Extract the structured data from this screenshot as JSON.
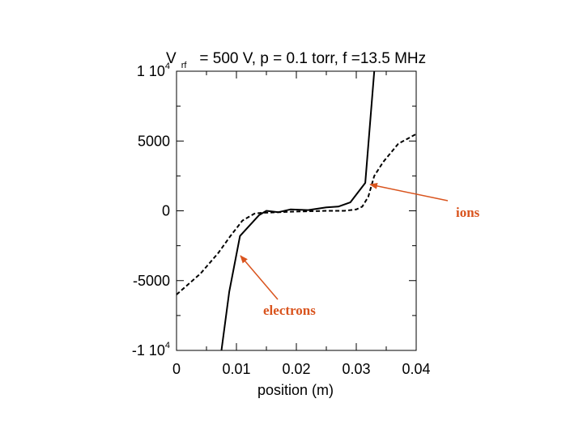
{
  "chart_data": {
    "type": "line",
    "title": {
      "v": "V",
      "rf": "rf",
      "rest": "= 500 V, p = 0.1 torr, f =13.5 MHz"
    },
    "xlabel": "position (m)",
    "ylabel": "",
    "xlim": [
      0,
      0.04
    ],
    "ylim": [
      -10000,
      10000
    ],
    "x_ticks": [
      {
        "value": 0,
        "label": "0"
      },
      {
        "value": 0.01,
        "label": "0.01"
      },
      {
        "value": 0.02,
        "label": "0.02"
      },
      {
        "value": 0.03,
        "label": "0.03"
      },
      {
        "value": 0.04,
        "label": "0.04"
      }
    ],
    "y_ticks": [
      {
        "value": 10000,
        "base": "1 10",
        "exp": "4"
      },
      {
        "value": 5000,
        "base": "5000",
        "exp": ""
      },
      {
        "value": 0,
        "base": "0",
        "exp": ""
      },
      {
        "value": -5000,
        "base": "-5000",
        "exp": ""
      },
      {
        "value": -10000,
        "base": "-1 10",
        "exp": "4"
      }
    ],
    "grid": false,
    "series": [
      {
        "name": "electrons",
        "style": "solid",
        "color": "#000000",
        "x": [
          0.0075,
          0.0088,
          0.0106,
          0.0123,
          0.0138,
          0.015,
          0.017,
          0.019,
          0.022,
          0.025,
          0.027,
          0.029,
          0.0315,
          0.033
        ],
        "y": [
          -10000,
          -5800,
          -1800,
          -1000,
          -300,
          0,
          -100,
          100,
          50,
          250,
          300,
          600,
          2000,
          10000
        ]
      },
      {
        "name": "ions",
        "style": "dashed",
        "color": "#000000",
        "x": [
          0.0,
          0.004,
          0.007,
          0.009,
          0.011,
          0.013,
          0.014,
          0.017,
          0.02,
          0.025,
          0.028,
          0.03,
          0.031,
          0.032,
          0.033,
          0.0345,
          0.037,
          0.04
        ],
        "y": [
          -6000,
          -4500,
          -3000,
          -1800,
          -700,
          -200,
          -150,
          -100,
          -50,
          0,
          0,
          100,
          300,
          1000,
          2500,
          3500,
          4800,
          5500
        ]
      }
    ],
    "annotations": [
      {
        "text": "ions",
        "color": "#d9541e",
        "arrow_to_x": 0.0326,
        "arrow_to_y": 2000
      },
      {
        "text": "electrons",
        "color": "#d9541e",
        "arrow_to_x": 0.011,
        "arrow_to_y": -3300
      }
    ]
  }
}
